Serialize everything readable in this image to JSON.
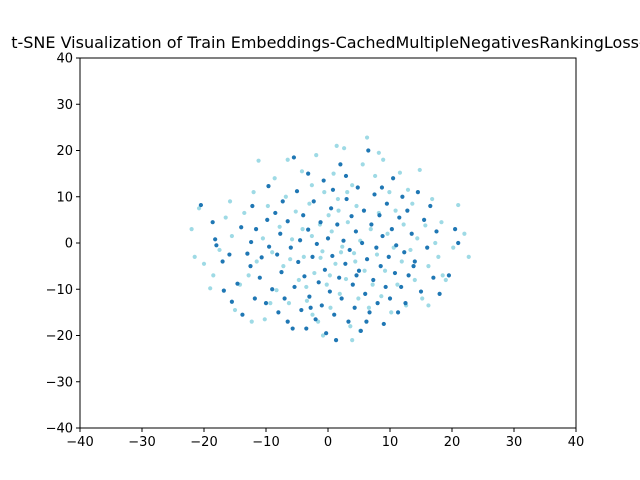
{
  "chart_data": {
    "type": "scatter",
    "title": "t-SNE Visualization of Train Embeddings-CachedMultipleNegativesRankingLoss-",
    "xlabel": "",
    "ylabel": "",
    "xlim": [
      -40,
      40
    ],
    "ylim": [
      -40,
      40
    ],
    "xticks": [
      -40,
      -30,
      -20,
      -10,
      0,
      10,
      20,
      30,
      40
    ],
    "yticks": [
      -40,
      -30,
      -20,
      -10,
      0,
      10,
      20,
      30,
      40
    ],
    "grid": false,
    "colors": {
      "series_dark": "#1f77b4",
      "series_light": "#9edae5"
    },
    "series": [
      {
        "color": "#1f77b4",
        "points": [
          [
            -20.5,
            8.2
          ],
          [
            -18.6,
            4.5
          ],
          [
            -18.2,
            0.8
          ],
          [
            -18,
            -0.5
          ],
          [
            -17,
            -4
          ],
          [
            -16.8,
            -10.3
          ],
          [
            -15.9,
            -2.5
          ],
          [
            -15.5,
            -12.7
          ],
          [
            -14.6,
            -8.8
          ],
          [
            -14,
            3.4
          ],
          [
            -13.8,
            -15.5
          ],
          [
            -13,
            -2.3
          ],
          [
            -12.5,
            -5
          ],
          [
            -12.4,
            0.2
          ],
          [
            -12.2,
            8
          ],
          [
            -11.6,
            3
          ],
          [
            -11,
            -7.5
          ],
          [
            -10.7,
            -3.1
          ],
          [
            -10,
            -13
          ],
          [
            -9.6,
            12.3
          ],
          [
            -9.5,
            -0.8
          ],
          [
            -9,
            -10
          ],
          [
            -8.5,
            6.5
          ],
          [
            -8.2,
            -2.5
          ],
          [
            -8,
            -15
          ],
          [
            -7.7,
            2
          ],
          [
            -7.5,
            -6.3
          ],
          [
            -7,
            -12
          ],
          [
            -6.5,
            4.7
          ],
          [
            -6.5,
            -17
          ],
          [
            -6,
            -1
          ],
          [
            -5.5,
            18.5
          ],
          [
            -5.4,
            -9.5
          ],
          [
            -5,
            11.2
          ],
          [
            -4.8,
            -4.1
          ],
          [
            -4.5,
            0.6
          ],
          [
            -4.3,
            -14.5
          ],
          [
            -4,
            6
          ],
          [
            -3.8,
            -7.2
          ],
          [
            -3.5,
            -18.5
          ],
          [
            -3.2,
            2.9
          ],
          [
            -3,
            -11.6
          ],
          [
            -2.5,
            -3
          ],
          [
            -2.3,
            9
          ],
          [
            -2,
            -16.5
          ],
          [
            -1.8,
            -0.2
          ],
          [
            -1.5,
            -8.5
          ],
          [
            -1.2,
            4.5
          ],
          [
            -1,
            -13.5
          ],
          [
            -0.7,
            13.5
          ],
          [
            -0.5,
            -5.8
          ],
          [
            -0.3,
            -19.5
          ],
          [
            0,
            1
          ],
          [
            0.3,
            -10.5
          ],
          [
            0.5,
            7.5
          ],
          [
            0.7,
            -2.8
          ],
          [
            1,
            -15.5
          ],
          [
            1.3,
            -21
          ],
          [
            1.5,
            4
          ],
          [
            1.8,
            -7.5
          ],
          [
            2,
            17
          ],
          [
            2.2,
            -12
          ],
          [
            2.5,
            0.5
          ],
          [
            2.8,
            -4.5
          ],
          [
            3,
            9.5
          ],
          [
            3.3,
            -17
          ],
          [
            3.5,
            -1.5
          ],
          [
            3.8,
            5.8
          ],
          [
            4,
            -9
          ],
          [
            4.3,
            -14
          ],
          [
            4.5,
            2.5
          ],
          [
            4.8,
            12
          ],
          [
            5,
            -6
          ],
          [
            5.3,
            -19
          ],
          [
            5.5,
            0
          ],
          [
            5.8,
            7
          ],
          [
            6,
            -11
          ],
          [
            6.3,
            -3.5
          ],
          [
            6.5,
            20
          ],
          [
            6.7,
            -15
          ],
          [
            7,
            4
          ],
          [
            7.3,
            -8
          ],
          [
            7.5,
            10.5
          ],
          [
            7.8,
            -1
          ],
          [
            8,
            -13
          ],
          [
            8.3,
            6
          ],
          [
            8.5,
            -5
          ],
          [
            8.8,
            1.5
          ],
          [
            9,
            -17.5
          ],
          [
            9.3,
            -9.5
          ],
          [
            9.5,
            8.5
          ],
          [
            9.8,
            -3
          ],
          [
            10,
            -12
          ],
          [
            10.3,
            3
          ],
          [
            10.5,
            14
          ],
          [
            10.8,
            -6.5
          ],
          [
            11,
            -0.5
          ],
          [
            11.3,
            -15
          ],
          [
            11.5,
            5.5
          ],
          [
            11.8,
            -9.5
          ],
          [
            12,
            10
          ],
          [
            12.3,
            -2
          ],
          [
            12.5,
            -13
          ],
          [
            12.8,
            7
          ],
          [
            13,
            -7
          ],
          [
            13.5,
            2
          ],
          [
            14,
            -4
          ],
          [
            14.5,
            11
          ],
          [
            15,
            -10.5
          ],
          [
            15.5,
            5
          ],
          [
            16,
            -1
          ],
          [
            16.5,
            8
          ],
          [
            17,
            -7.5
          ],
          [
            17.5,
            2.5
          ],
          [
            18,
            -11
          ],
          [
            19.5,
            -7
          ],
          [
            20.5,
            3
          ],
          [
            21,
            0
          ],
          [
            -2.8,
            -14
          ],
          [
            0.8,
            11.5
          ],
          [
            -7.3,
            9
          ],
          [
            4.6,
            -7
          ],
          [
            -9.8,
            5
          ],
          [
            8.7,
            12
          ],
          [
            -11.8,
            -12
          ],
          [
            13.8,
            -5
          ],
          [
            -3.2,
            15
          ],
          [
            2.9,
            14.5
          ],
          [
            6.2,
            -17
          ],
          [
            -5.7,
            -18.5
          ]
        ]
      },
      {
        "color": "#9edae5",
        "points": [
          [
            -22,
            3
          ],
          [
            -21.5,
            -3
          ],
          [
            -20.8,
            7.5
          ],
          [
            -20,
            -4.5
          ],
          [
            -19,
            -9.8
          ],
          [
            -18.5,
            -7
          ],
          [
            -17.5,
            -1.5
          ],
          [
            -16.5,
            5.5
          ],
          [
            -15.5,
            1.5
          ],
          [
            -15,
            -14.5
          ],
          [
            -14.2,
            -9
          ],
          [
            -13.5,
            6.5
          ],
          [
            -12.8,
            -7
          ],
          [
            -12,
            11
          ],
          [
            -11.5,
            -4
          ],
          [
            -11.2,
            17.8
          ],
          [
            -10.5,
            1
          ],
          [
            -10.2,
            -16.5
          ],
          [
            -9.7,
            8
          ],
          [
            -9,
            -2
          ],
          [
            -8.6,
            14
          ],
          [
            -8.3,
            -10.2
          ],
          [
            -7.8,
            3.5
          ],
          [
            -7.2,
            -5
          ],
          [
            -6.8,
            10
          ],
          [
            -6.3,
            -13
          ],
          [
            -5.8,
            0.8
          ],
          [
            -5.2,
            6.8
          ],
          [
            -4.7,
            -8
          ],
          [
            -4.2,
            15.5
          ],
          [
            -3.9,
            -3
          ],
          [
            -3.4,
            -12.5
          ],
          [
            -3,
            8.5
          ],
          [
            -2.6,
            1.5
          ],
          [
            -2.2,
            -6.5
          ],
          [
            -1.9,
            19
          ],
          [
            -1.6,
            -17
          ],
          [
            -1.3,
            4
          ],
          [
            -0.9,
            -1.8
          ],
          [
            -0.6,
            11
          ],
          [
            -0.2,
            -9
          ],
          [
            0.1,
            6
          ],
          [
            0.4,
            -14
          ],
          [
            0.6,
            2.5
          ],
          [
            0.9,
            15
          ],
          [
            1.2,
            -4.5
          ],
          [
            1.6,
            9.5
          ],
          [
            1.9,
            -11
          ],
          [
            2.3,
            -0.8
          ],
          [
            2.6,
            20.5
          ],
          [
            2.9,
            -7.8
          ],
          [
            3.2,
            4.5
          ],
          [
            3.6,
            -18
          ],
          [
            3.9,
            12.5
          ],
          [
            4.2,
            -2.2
          ],
          [
            4.6,
            8
          ],
          [
            4.9,
            -12
          ],
          [
            5.2,
            0.5
          ],
          [
            5.6,
            17
          ],
          [
            5.9,
            -6
          ],
          [
            6.3,
            22.8
          ],
          [
            6.6,
            -14
          ],
          [
            6.9,
            3
          ],
          [
            7.2,
            -9
          ],
          [
            7.6,
            14.5
          ],
          [
            7.9,
            -2.5
          ],
          [
            8.2,
            6.5
          ],
          [
            8.6,
            -11.5
          ],
          [
            8.9,
            18
          ],
          [
            9.2,
            -6
          ],
          [
            9.6,
            2
          ],
          [
            9.9,
            11
          ],
          [
            10.2,
            -15
          ],
          [
            10.6,
            -1
          ],
          [
            10.9,
            7
          ],
          [
            11.2,
            -9
          ],
          [
            11.6,
            15.2
          ],
          [
            11.9,
            -4
          ],
          [
            12.2,
            4
          ],
          [
            12.6,
            -13.5
          ],
          [
            12.9,
            11.5
          ],
          [
            13.3,
            -1.5
          ],
          [
            13.6,
            8.5
          ],
          [
            14,
            -8
          ],
          [
            14.4,
            1
          ],
          [
            14.8,
            15.8
          ],
          [
            15.2,
            -12
          ],
          [
            15.7,
            3.8
          ],
          [
            16.2,
            -5
          ],
          [
            16.8,
            9.5
          ],
          [
            17.3,
            0
          ],
          [
            17.8,
            -3
          ],
          [
            18.3,
            4.5
          ],
          [
            19,
            -8
          ],
          [
            20.2,
            -1
          ],
          [
            21,
            8.2
          ],
          [
            22,
            2
          ],
          [
            22.7,
            -3
          ],
          [
            -0.8,
            -20
          ],
          [
            3.9,
            -21
          ],
          [
            -12.3,
            -17
          ],
          [
            16.2,
            -13.5
          ],
          [
            -6.5,
            18
          ],
          [
            8.2,
            19.5
          ],
          [
            -15.8,
            9
          ],
          [
            18.5,
            -7
          ],
          [
            -9.3,
            -13
          ],
          [
            -2.5,
            -15.5
          ],
          [
            5.2,
            -19
          ],
          [
            1.4,
            21
          ],
          [
            -4.1,
            3
          ],
          [
            -1.2,
            -3.2
          ],
          [
            2.1,
            -2
          ],
          [
            -3.5,
            -9.5
          ],
          [
            0.3,
            -7
          ],
          [
            4.4,
            -4
          ],
          [
            -6.1,
            -3.5
          ],
          [
            1.7,
            7
          ],
          [
            -2.6,
            12.5
          ],
          [
            3.1,
            11
          ]
        ]
      }
    ]
  }
}
